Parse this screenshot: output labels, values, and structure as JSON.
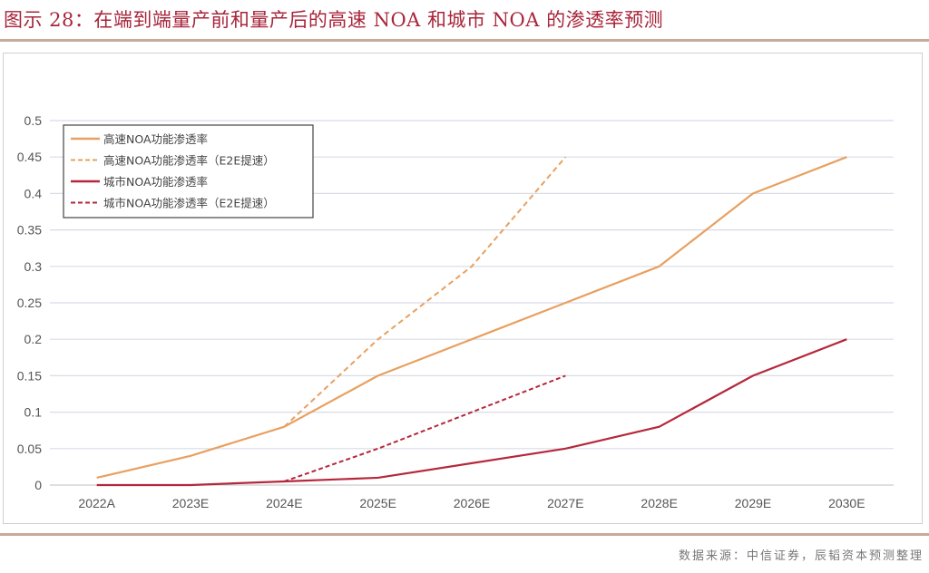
{
  "header": {
    "title": "图示 28：在端到端量产前和量产后的高速 NOA 和城市 NOA 的渗透率预测"
  },
  "footer": {
    "source": "数据来源：中信证券，辰韬资本预测整理"
  },
  "colors": {
    "highway": "#e8a060",
    "city": "#b5283c",
    "grid": "#d9dbe6",
    "title": "#a8253a"
  },
  "chart_data": {
    "type": "line",
    "title": "",
    "xlabel": "",
    "ylabel": "",
    "categories": [
      "2022A",
      "2023E",
      "2024E",
      "2025E",
      "2026E",
      "2027E",
      "2028E",
      "2029E",
      "2030E"
    ],
    "ylim": [
      0,
      0.5
    ],
    "yticks": [
      "0",
      "0.05",
      "0.1",
      "0.15",
      "0.2",
      "0.25",
      "0.3",
      "0.35",
      "0.4",
      "0.45",
      "0.5"
    ],
    "grid": true,
    "legend_position": "top-left",
    "series": [
      {
        "name": "高速NOA功能渗透率",
        "style": "solid",
        "color": "#e8a060",
        "values": [
          0.01,
          0.04,
          0.08,
          0.15,
          0.2,
          0.25,
          0.3,
          0.4,
          0.45
        ]
      },
      {
        "name": "高速NOA功能渗透率（E2E提速）",
        "style": "dashed",
        "color": "#e8a060",
        "values": [
          null,
          null,
          0.08,
          0.2,
          0.3,
          0.45,
          null,
          null,
          null
        ]
      },
      {
        "name": "城市NOA功能渗透率",
        "style": "solid",
        "color": "#b5283c",
        "values": [
          0.0,
          0.0,
          0.005,
          0.01,
          0.03,
          0.05,
          0.08,
          0.15,
          0.2
        ]
      },
      {
        "name": "城市NOA功能渗透率（E2E提速）",
        "style": "dashed",
        "color": "#b5283c",
        "values": [
          null,
          null,
          0.005,
          0.05,
          0.1,
          0.15,
          null,
          null,
          null
        ]
      }
    ]
  }
}
